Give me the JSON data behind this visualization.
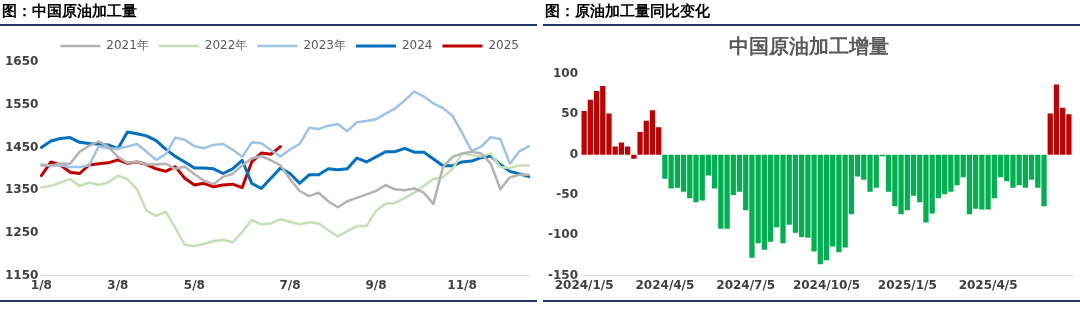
{
  "chart_data": [
    {
      "type": "line",
      "title": "图：中国原油加工量",
      "categories": [
        "1/8",
        null,
        null,
        null,
        null,
        null,
        null,
        null,
        "3/8",
        null,
        null,
        null,
        null,
        null,
        null,
        null,
        "5/8",
        null,
        null,
        null,
        null,
        null,
        null,
        null,
        null,
        null,
        "7/8",
        null,
        null,
        null,
        null,
        null,
        null,
        null,
        null,
        "9/8",
        null,
        null,
        null,
        null,
        null,
        null,
        null,
        null,
        "11/8",
        null,
        null,
        null,
        null,
        null,
        null,
        null
      ],
      "series": [
        {
          "name": "2021年",
          "color": "#b3b3b3",
          "values": [
            1408,
            1408,
            1412,
            1412,
            1440,
            1454,
            1464,
            1452,
            1428,
            1414,
            1416,
            1410,
            1410,
            1412,
            1400,
            1405,
            1388,
            1372,
            1364,
            1381,
            1388,
            1408,
            1424,
            1430,
            1420,
            1408,
            1376,
            1348,
            1336,
            1344,
            1324,
            1310,
            1324,
            1332,
            1340,
            1348,
            1362,
            1352,
            1350,
            1354,
            1344,
            1318,
            1404,
            1428,
            1436,
            1440,
            1436,
            1412,
            1352,
            1380,
            1386,
            1386
          ]
        },
        {
          "name": "2022年",
          "color": "#c5e0b4",
          "values": [
            1356,
            1360,
            1368,
            1376,
            1360,
            1368,
            1362,
            1368,
            1384,
            1376,
            1352,
            1302,
            1290,
            1300,
            1262,
            1222,
            1219,
            1224,
            1231,
            1234,
            1228,
            1252,
            1280,
            1270,
            1272,
            1282,
            1276,
            1270,
            1275,
            1272,
            1256,
            1242,
            1254,
            1266,
            1266,
            1302,
            1318,
            1320,
            1332,
            1344,
            1360,
            1376,
            1380,
            1400,
            1436,
            1432,
            1429,
            1436,
            1404,
            1402,
            1408,
            1408
          ]
        },
        {
          "name": "2023年",
          "color": "#9dc3e6",
          "values": [
            1410,
            1408,
            1408,
            1404,
            1404,
            1408,
            1453,
            1448,
            1447,
            1452,
            1458,
            1440,
            1421,
            1434,
            1473,
            1468,
            1453,
            1448,
            1456,
            1458,
            1445,
            1428,
            1462,
            1460,
            1444,
            1429,
            1445,
            1458,
            1496,
            1493,
            1501,
            1505,
            1488,
            1509,
            1512,
            1516,
            1529,
            1541,
            1560,
            1581,
            1569,
            1553,
            1542,
            1524,
            1484,
            1442,
            1452,
            1474,
            1470,
            1412,
            1441,
            1453
          ]
        },
        {
          "name": "2024",
          "color": "#0070c0",
          "values": [
            1450,
            1465,
            1471,
            1473,
            1462,
            1459,
            1458,
            1456,
            1447,
            1486,
            1482,
            1477,
            1466,
            1446,
            1429,
            1416,
            1402,
            1402,
            1400,
            1389,
            1400,
            1420,
            1366,
            1354,
            1378,
            1402,
            1389,
            1366,
            1386,
            1386,
            1400,
            1398,
            1400,
            1425,
            1416,
            1428,
            1440,
            1440,
            1448,
            1439,
            1439,
            1423,
            1407,
            1407,
            1416,
            1418,
            1426,
            1430,
            1410,
            1394,
            1388,
            1382
          ]
        },
        {
          "name": "2025",
          "color": "#c00000",
          "values": [
            1384,
            1416,
            1409,
            1392,
            1389,
            1409,
            1412,
            1414,
            1421,
            1413,
            1416,
            1410,
            1400,
            1394,
            1405,
            1378,
            1362,
            1366,
            1358,
            1362,
            1364,
            1356,
            1416,
            1437,
            1434,
            1452,
            null,
            null,
            null,
            null,
            null,
            null,
            null,
            null,
            null,
            null,
            null,
            null,
            null,
            null,
            null,
            null,
            null,
            null,
            null,
            null,
            null,
            null,
            null,
            null,
            null,
            null
          ]
        }
      ],
      "ylim": [
        1150,
        1650
      ],
      "yticks": [
        1150,
        1250,
        1350,
        1450,
        1550,
        1650
      ],
      "legend": "top right",
      "marker": "none",
      "line_style": "solid"
    },
    {
      "type": "bar",
      "title": "图：原油加工量同比变化",
      "subtitle": "中国原油加工增量",
      "categories": [
        "2024/1/5",
        null,
        null,
        null,
        null,
        null,
        null,
        null,
        null,
        null,
        null,
        null,
        null,
        "2024/4/5",
        null,
        null,
        null,
        null,
        null,
        null,
        null,
        null,
        null,
        null,
        null,
        null,
        "2024/7/5",
        null,
        null,
        null,
        null,
        null,
        null,
        null,
        null,
        null,
        null,
        null,
        null,
        "2024/10/5",
        null,
        null,
        null,
        null,
        null,
        null,
        null,
        null,
        null,
        null,
        null,
        null,
        "2025/1/5",
        null,
        null,
        null,
        null,
        null,
        null,
        null,
        null,
        null,
        null,
        null,
        null,
        "2025/4/5",
        null,
        null,
        null,
        null,
        null,
        null,
        null,
        null,
        null,
        null,
        null,
        null,
        null
      ],
      "values": [
        54,
        68,
        79,
        85,
        51,
        10,
        15,
        10,
        -5,
        28,
        42,
        55,
        34,
        -30,
        -42,
        -41,
        -46,
        -54,
        -59,
        -57,
        -26,
        -42,
        -92,
        -92,
        -50,
        -46,
        -69,
        -128,
        -110,
        -118,
        -108,
        -90,
        -110,
        -87,
        -97,
        -102,
        -103,
        -120,
        -136,
        -131,
        -114,
        -121,
        -115,
        -74,
        -27,
        -31,
        -46,
        -41,
        -2,
        -46,
        -64,
        -74,
        -69,
        -51,
        -59,
        -84,
        -73,
        -54,
        -49,
        -46,
        -38,
        -28,
        -74,
        -67,
        -68,
        -68,
        -54,
        -28,
        -33,
        -41,
        -38,
        -41,
        -31,
        -41,
        -64,
        51,
        87,
        58,
        50
      ],
      "colors": [
        "#c00000",
        "#c00000",
        "#c00000",
        "#c00000",
        "#c00000",
        "#c00000",
        "#c00000",
        "#c00000",
        "#c00000",
        "#c00000",
        "#c00000",
        "#c00000",
        "#c00000",
        "#00b050",
        "#00b050",
        "#00b050",
        "#00b050",
        "#00b050",
        "#00b050",
        "#00b050",
        "#00b050",
        "#00b050",
        "#00b050",
        "#00b050",
        "#00b050",
        "#00b050",
        "#00b050",
        "#00b050",
        "#00b050",
        "#00b050",
        "#00b050",
        "#00b050",
        "#00b050",
        "#00b050",
        "#00b050",
        "#00b050",
        "#00b050",
        "#00b050",
        "#00b050",
        "#00b050",
        "#00b050",
        "#00b050",
        "#00b050",
        "#00b050",
        "#00b050",
        "#00b050",
        "#00b050",
        "#00b050",
        "#00b050",
        "#00b050",
        "#00b050",
        "#00b050",
        "#00b050",
        "#00b050",
        "#00b050",
        "#00b050",
        "#00b050",
        "#00b050",
        "#00b050",
        "#00b050",
        "#00b050",
        "#00b050",
        "#00b050",
        "#00b050",
        "#00b050",
        "#00b050",
        "#00b050",
        "#00b050",
        "#00b050",
        "#00b050",
        "#00b050",
        "#00b050",
        "#00b050",
        "#00b050",
        "#00b050",
        "#c00000",
        "#c00000",
        "#c00000",
        "#c00000"
      ],
      "ylim": [
        -150,
        100
      ],
      "yticks": [
        -150,
        -100,
        -50,
        0,
        50,
        100
      ]
    }
  ]
}
